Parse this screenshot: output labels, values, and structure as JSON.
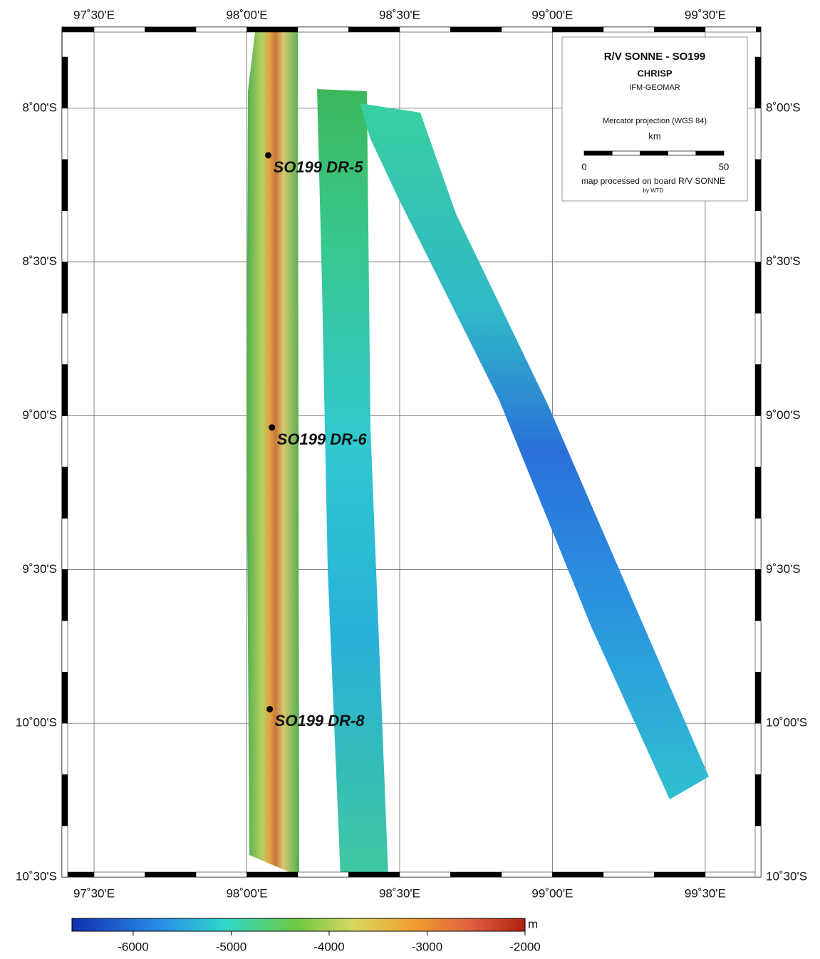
{
  "map": {
    "frame": {
      "lonlim": [
        97.395,
        99.682
      ],
      "latlim": [
        7.736,
        10.5
      ]
    },
    "lon_ticks": [
      {
        "value": 97.5,
        "label": "97˚30'E"
      },
      {
        "value": 98.0,
        "label": "98˚00'E"
      },
      {
        "value": 98.5,
        "label": "98˚30'E"
      },
      {
        "value": 99.0,
        "label": "99˚00'E"
      },
      {
        "value": 99.5,
        "label": "99˚30'E"
      }
    ],
    "lat_ticks": [
      {
        "value": 8.0,
        "label": "8˚00'S"
      },
      {
        "value": 8.5,
        "label": "8˚30'S"
      },
      {
        "value": 9.0,
        "label": "9˚00'S"
      },
      {
        "value": 9.5,
        "label": "9˚30'S"
      },
      {
        "value": 10.0,
        "label": "10˚00'S"
      },
      {
        "value": 10.5,
        "label": "10˚30'S"
      }
    ],
    "samples": [
      {
        "label": "SO199 DR-5",
        "lon": 98.07,
        "lat": 8.153
      },
      {
        "label": "SO199 DR-6",
        "lon": 98.082,
        "lat": 9.038
      },
      {
        "label": "SO199 DR-8",
        "lon": 98.075,
        "lat": 9.954
      }
    ],
    "legend": {
      "title": "R/V SONNE -  SO199",
      "subtitle": "CHRISP",
      "institution": "IFM-GEOMAR",
      "projection": "Mercator projection (WGS 84)",
      "scale_unit": "km",
      "scale_start": "0",
      "scale_end": "50",
      "credit": "map processed on board R/V SONNE",
      "credit_by": "by WTD"
    },
    "colorbar": {
      "unit": "m",
      "clim": [
        -6625,
        -2000
      ],
      "ticks": [
        -6000,
        -5000,
        -4000,
        -3000,
        -2000
      ]
    }
  }
}
